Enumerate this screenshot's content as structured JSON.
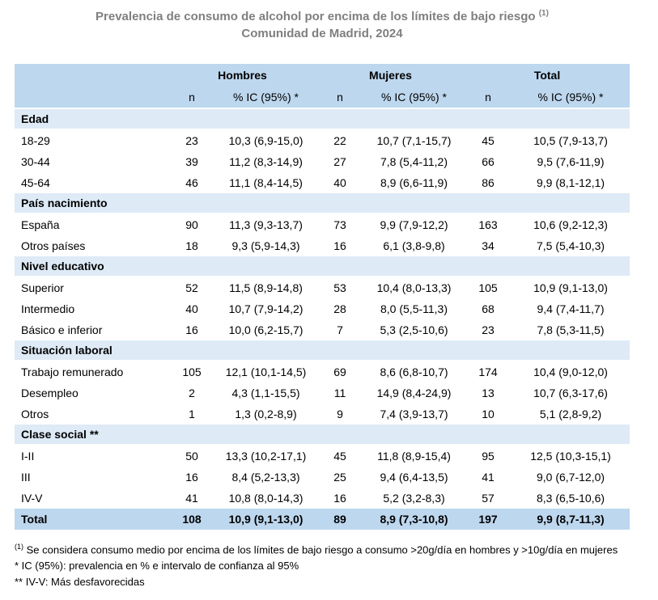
{
  "title": {
    "line1": "Prevalencia de consumo de alcohol por encima de los límites de bajo riesgo",
    "line1_superscript": "(1)",
    "line2": "Comunidad de Madrid, 2024"
  },
  "chart_data": {
    "type": "table",
    "group_headers": [
      "",
      "Hombres",
      "Mujeres",
      "Total"
    ],
    "sub_headers": [
      "",
      "n",
      "% IC (95%) *",
      "n",
      "% IC (95%) *",
      "n",
      "% IC (95%) *"
    ],
    "sections": [
      {
        "name": "Edad",
        "rows": [
          {
            "label": "18-29",
            "cells": [
              "23",
              "10,3 (6,9-15,0)",
              "22",
              "10,7 (7,1-15,7)",
              "45",
              "10,5 (7,9-13,7)"
            ]
          },
          {
            "label": "30-44",
            "cells": [
              "39",
              "11,2 (8,3-14,9)",
              "27",
              "7,8 (5,4-11,2)",
              "66",
              "9,5 (7,6-11,9)"
            ]
          },
          {
            "label": "45-64",
            "cells": [
              "46",
              "11,1 (8,4-14,5)",
              "40",
              "8,9 (6,6-11,9)",
              "86",
              "9,9 (8,1-12,1)"
            ]
          }
        ]
      },
      {
        "name": "País nacimiento",
        "rows": [
          {
            "label": "España",
            "cells": [
              "90",
              "11,3 (9,3-13,7)",
              "73",
              "9,9 (7,9-12,2)",
              "163",
              "10,6 (9,2-12,3)"
            ]
          },
          {
            "label": "Otros países",
            "cells": [
              "18",
              "9,3 (5,9-14,3)",
              "16",
              "6,1 (3,8-9,8)",
              "34",
              "7,5 (5,4-10,3)"
            ]
          }
        ]
      },
      {
        "name": "Nivel educativo",
        "rows": [
          {
            "label": "Superior",
            "cells": [
              "52",
              "11,5 (8,9-14,8)",
              "53",
              "10,4 (8,0-13,3)",
              "105",
              "10,9 (9,1-13,0)"
            ]
          },
          {
            "label": "Intermedio",
            "cells": [
              "40",
              "10,7 (7,9-14,2)",
              "28",
              "8,0 (5,5-11,3)",
              "68",
              "9,4 (7,4-11,7)"
            ]
          },
          {
            "label": "Básico e inferior",
            "cells": [
              "16",
              "10,0 (6,2-15,7)",
              "7",
              "5,3 (2,5-10,6)",
              "23",
              "7,8 (5,3-11,5)"
            ]
          }
        ]
      },
      {
        "name": "Situación laboral",
        "rows": [
          {
            "label": "Trabajo remunerado",
            "cells": [
              "105",
              "12,1 (10,1-14,5)",
              "69",
              "8,6 (6,8-10,7)",
              "174",
              "10,4 (9,0-12,0)"
            ]
          },
          {
            "label": "Desempleo",
            "cells": [
              "2",
              "4,3 (1,1-15,5)",
              "11",
              "14,9 (8,4-24,9)",
              "13",
              "10,7 (6,3-17,6)"
            ]
          },
          {
            "label": "Otros",
            "cells": [
              "1",
              "1,3 (0,2-8,9)",
              "9",
              "7,4 (3,9-13,7)",
              "10",
              "5,1 (2,8-9,2)"
            ]
          }
        ]
      },
      {
        "name": "Clase social **",
        "rows": [
          {
            "label": "I-II",
            "cells": [
              "50",
              "13,3 (10,2-17,1)",
              "45",
              "11,8 (8,9-15,4)",
              "95",
              "12,5 (10,3-15,1)"
            ]
          },
          {
            "label": "III",
            "cells": [
              "16",
              "8,4 (5,2-13,3)",
              "25",
              "9,4 (6,4-13,5)",
              "41",
              "9,0 (6,7-12,0)"
            ]
          },
          {
            "label": "IV-V",
            "cells": [
              "41",
              "10,8 (8,0-14,3)",
              "16",
              "5,2 (3,2-8,3)",
              "57",
              "8,3 (6,5-10,6)"
            ]
          }
        ]
      }
    ],
    "total_row": {
      "label": "Total",
      "cells": [
        "108",
        "10,9 (9,1-13,0)",
        "89",
        "8,9 (7,3-10,8)",
        "197",
        "9,9 (8,7-11,3)"
      ]
    }
  },
  "footnotes": [
    {
      "marker": "(1)",
      "text": " Se considera consumo medio por encima de los límites de bajo riesgo a consumo >20g/día en hombres y >10g/día en mujeres"
    },
    {
      "marker": "",
      "text": "* IC (95%): prevalencia en % e intervalo de confianza al 95%"
    },
    {
      "marker": "",
      "text": "** IV-V: Más desfavorecidas"
    }
  ],
  "colors": {
    "header_bg": "#BDD7EE",
    "section_bg": "#DEEAF6",
    "total_bg": "#BDD7EE",
    "title_color": "#7F7F7F"
  }
}
